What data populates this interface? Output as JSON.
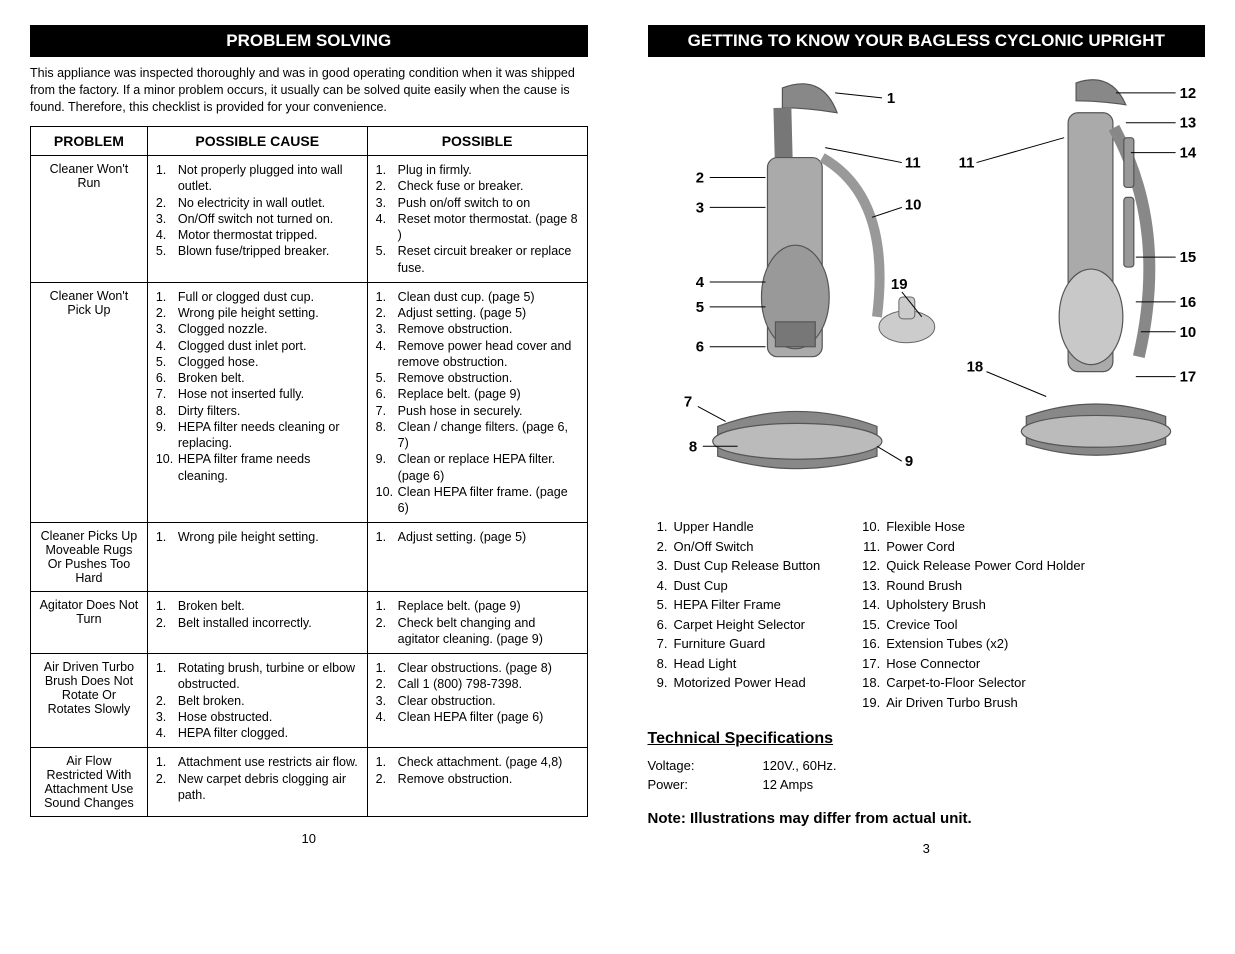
{
  "left": {
    "header": "PROBLEM SOLVING",
    "intro": "This appliance was inspected thoroughly and was in good operating condition when it was shipped from the factory. If a minor problem occurs, it usually can be solved quite easily when the cause is found. Therefore, this checklist is provided for your convenience.",
    "columns": [
      "PROBLEM",
      "POSSIBLE CAUSE",
      "POSSIBLE"
    ],
    "rows": [
      {
        "problem": "Cleaner Won't Run",
        "causes": [
          "Not properly plugged into wall outlet.",
          "No electricity in wall outlet.",
          "On/Off switch not turned on.",
          "Motor thermostat tripped.",
          "Blown fuse/tripped breaker."
        ],
        "solutions": [
          "Plug in firmly.",
          "Check fuse or breaker.",
          "Push on/off switch to on",
          "Reset motor thermostat. (page 8 )",
          "Reset circuit breaker or replace fuse."
        ]
      },
      {
        "problem": "Cleaner Won't Pick Up",
        "causes": [
          "Full or clogged dust cup.",
          "Wrong pile height setting.",
          "Clogged nozzle.",
          "Clogged dust inlet port.",
          "Clogged hose.",
          "Broken belt.",
          "Hose not inserted fully.",
          "Dirty filters.",
          "HEPA filter needs cleaning or replacing.",
          "HEPA filter frame needs cleaning."
        ],
        "solutions": [
          "Clean dust cup. (page 5)",
          "Adjust setting. (page 5)",
          "Remove obstruction.",
          "Remove power head cover and remove obstruction.",
          "Remove obstruction.",
          "Replace belt. (page 9)",
          "Push hose in securely.",
          "Clean / change filters. (page 6, 7)",
          "Clean or replace HEPA filter. (page 6)",
          "Clean HEPA filter frame. (page 6)"
        ]
      },
      {
        "problem": "Cleaner Picks Up Moveable Rugs Or Pushes Too Hard",
        "causes": [
          "Wrong pile height setting."
        ],
        "solutions": [
          "Adjust setting. (page 5)"
        ]
      },
      {
        "problem": "Agitator Does Not Turn",
        "causes": [
          "Broken belt.",
          "Belt installed incorrectly."
        ],
        "solutions": [
          "Replace belt. (page 9)",
          "Check belt changing and agitator cleaning. (page 9)"
        ]
      },
      {
        "problem": "Air Driven Turbo Brush Does Not Rotate Or Rotates Slowly",
        "causes": [
          "Rotating brush, turbine or elbow obstructed.",
          "Belt broken.",
          "Hose obstructed.",
          "HEPA filter clogged."
        ],
        "solutions": [
          "Clear obstructions. (page 8)",
          "Call 1 (800) 798-7398.",
          "Clear obstruction.",
          "Clean HEPA filter (page 6)"
        ]
      },
      {
        "problem": "Air Flow Restricted With Attachment Use Sound Changes",
        "causes": [
          "Attachment use restricts air flow.",
          "New carpet debris clogging air path."
        ],
        "solutions": [
          "Check attachment. (page 4,8)",
          "Remove obstruction."
        ]
      }
    ],
    "page": "10"
  },
  "right": {
    "header": "GETTING TO KNOW  YOUR  BAGLESS  CYCLONIC UPRIGHT",
    "callouts_left": [
      "1",
      "2",
      "3",
      "4",
      "5",
      "6",
      "7",
      "8",
      "9",
      "10",
      "11",
      "19"
    ],
    "callouts_right": [
      "11",
      "12",
      "13",
      "14",
      "15",
      "16",
      "10",
      "17",
      "18"
    ],
    "parts_left": [
      {
        "n": "1.",
        "t": "Upper Handle"
      },
      {
        "n": "2.",
        "t": "On/Off Switch"
      },
      {
        "n": "3.",
        "t": "Dust Cup Release Button"
      },
      {
        "n": "4.",
        "t": "Dust Cup"
      },
      {
        "n": "5.",
        "t": "HEPA Filter Frame"
      },
      {
        "n": "6.",
        "t": "Carpet Height Selector"
      },
      {
        "n": "7.",
        "t": "Furniture Guard"
      },
      {
        "n": "8.",
        "t": "Head Light"
      },
      {
        "n": "9.",
        "t": "Motorized Power Head"
      }
    ],
    "parts_right": [
      {
        "n": "10.",
        "t": "Flexible Hose"
      },
      {
        "n": "11.",
        "t": "Power Cord"
      },
      {
        "n": "12.",
        "t": "Quick Release Power Cord Holder"
      },
      {
        "n": "13.",
        "t": "Round Brush"
      },
      {
        "n": "14.",
        "t": "Upholstery Brush"
      },
      {
        "n": "15.",
        "t": "Crevice Tool"
      },
      {
        "n": "16.",
        "t": "Extension Tubes (x2)"
      },
      {
        "n": "17.",
        "t": "Hose Connector"
      },
      {
        "n": "18.",
        "t": "Carpet-to-Floor Selector"
      },
      {
        "n": "19.",
        "t": "Air Driven Turbo Brush"
      }
    ],
    "tech_head": "Technical Specifications",
    "specs": [
      {
        "label": "Voltage:",
        "value": "120V.,  60Hz."
      },
      {
        "label": "Power:",
        "value": "12 Amps"
      }
    ],
    "note": "Note: Illustrations may differ from actual unit.",
    "page": "3"
  }
}
